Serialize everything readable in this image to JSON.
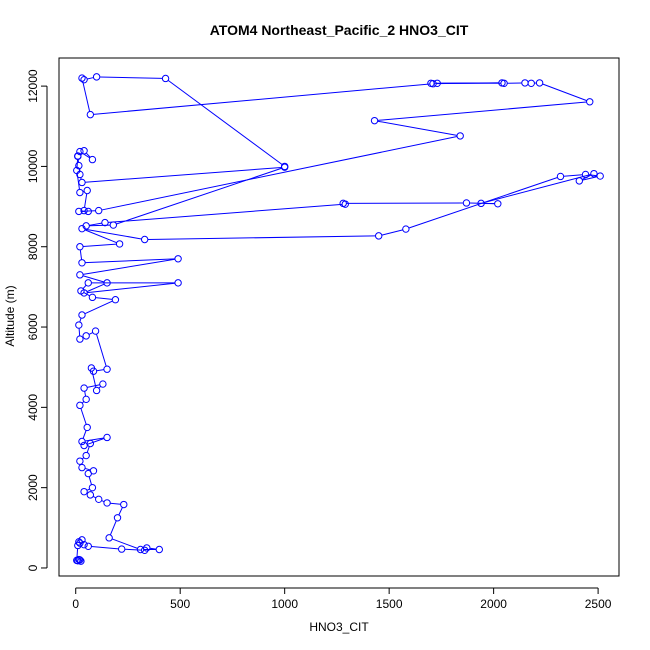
{
  "chart_data": {
    "type": "line",
    "title": "ATOM4 Northeast_Pacific_2 HNO3_CIT",
    "xlabel": "HNO3_CIT",
    "ylabel": "Altitude (m)",
    "xlim": [
      -80,
      2600
    ],
    "ylim": [
      -200,
      12700
    ],
    "x_ticks": [
      0,
      500,
      1000,
      1500,
      2000,
      2500
    ],
    "y_ticks": [
      0,
      2000,
      4000,
      6000,
      8000,
      10000,
      12000
    ],
    "grid": false,
    "legend": "none",
    "series": [
      {
        "color": "#0000ff",
        "marker": "open-circle",
        "points": [
          [
            10,
            180
          ],
          [
            20,
            200
          ],
          [
            25,
            170
          ],
          [
            15,
            210
          ],
          [
            5,
            190
          ],
          [
            10,
            560
          ],
          [
            20,
            620
          ],
          [
            15,
            650
          ],
          [
            30,
            700
          ],
          [
            40,
            580
          ],
          [
            60,
            540
          ],
          [
            220,
            470
          ],
          [
            330,
            440
          ],
          [
            340,
            500
          ],
          [
            400,
            460
          ],
          [
            310,
            460
          ],
          [
            160,
            750
          ],
          [
            200,
            1250
          ],
          [
            230,
            1580
          ],
          [
            150,
            1620
          ],
          [
            110,
            1710
          ],
          [
            70,
            1820
          ],
          [
            40,
            1900
          ],
          [
            80,
            2000
          ],
          [
            60,
            2350
          ],
          [
            85,
            2420
          ],
          [
            30,
            2500
          ],
          [
            20,
            2660
          ],
          [
            50,
            2800
          ],
          [
            70,
            3100
          ],
          [
            40,
            3050
          ],
          [
            150,
            3250
          ],
          [
            30,
            3150
          ],
          [
            55,
            3500
          ],
          [
            20,
            4050
          ],
          [
            50,
            4200
          ],
          [
            40,
            4480
          ],
          [
            130,
            4580
          ],
          [
            100,
            4420
          ],
          [
            75,
            4980
          ],
          [
            85,
            4900
          ],
          [
            150,
            4950
          ],
          [
            95,
            5900
          ],
          [
            50,
            5780
          ],
          [
            20,
            5700
          ],
          [
            15,
            6050
          ],
          [
            30,
            6300
          ],
          [
            190,
            6680
          ],
          [
            80,
            6740
          ],
          [
            25,
            6900
          ],
          [
            60,
            7100
          ],
          [
            490,
            7100
          ],
          [
            40,
            6850
          ],
          [
            150,
            7100
          ],
          [
            20,
            7300
          ],
          [
            490,
            7700
          ],
          [
            30,
            7600
          ],
          [
            20,
            8000
          ],
          [
            210,
            8070
          ],
          [
            30,
            8450
          ],
          [
            330,
            8180
          ],
          [
            1450,
            8270
          ],
          [
            1580,
            8440
          ],
          [
            2320,
            9750
          ],
          [
            2440,
            9800
          ],
          [
            2510,
            9760
          ],
          [
            2410,
            9640
          ],
          [
            2480,
            9820
          ],
          [
            1940,
            9080
          ],
          [
            2020,
            9070
          ],
          [
            1870,
            9090
          ],
          [
            1280,
            9080
          ],
          [
            1290,
            9060
          ],
          [
            140,
            8600
          ],
          [
            50,
            8520
          ],
          [
            180,
            8540
          ],
          [
            1000,
            9980
          ],
          [
            30,
            9600
          ],
          [
            20,
            9800
          ],
          [
            15,
            10020
          ],
          [
            10,
            10260
          ],
          [
            20,
            10370
          ],
          [
            80,
            10170
          ],
          [
            40,
            10390
          ],
          [
            10,
            10250
          ],
          [
            5,
            9900
          ],
          [
            20,
            9350
          ],
          [
            55,
            9400
          ],
          [
            40,
            8900
          ],
          [
            60,
            8880
          ],
          [
            15,
            8880
          ],
          [
            110,
            8900
          ],
          [
            1840,
            10760
          ],
          [
            1430,
            11140
          ],
          [
            2460,
            11610
          ],
          [
            2220,
            12080
          ],
          [
            2180,
            12070
          ],
          [
            2150,
            12080
          ],
          [
            2050,
            12070
          ],
          [
            1730,
            12070
          ],
          [
            1700,
            12070
          ],
          [
            2040,
            12080
          ],
          [
            1710,
            12060
          ],
          [
            70,
            11290
          ],
          [
            30,
            12200
          ],
          [
            40,
            12160
          ],
          [
            100,
            12230
          ],
          [
            430,
            12190
          ],
          [
            1000,
            10000
          ]
        ]
      }
    ]
  }
}
